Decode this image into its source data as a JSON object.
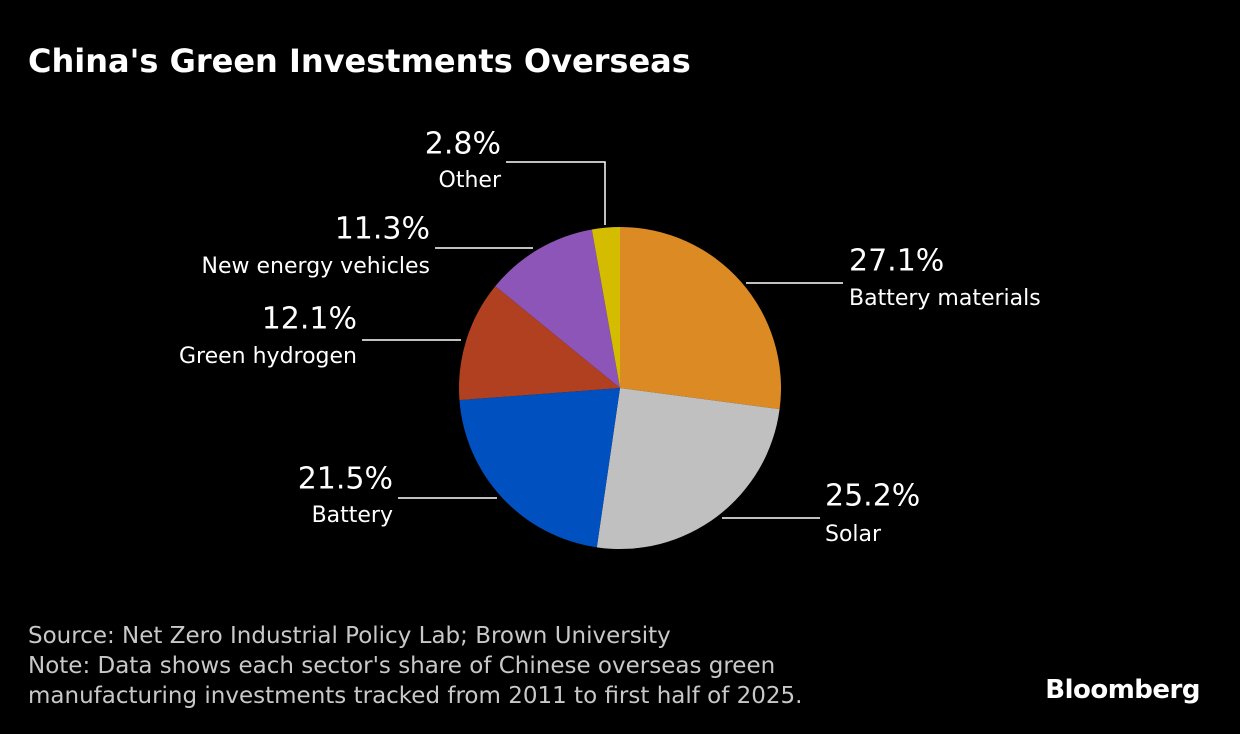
{
  "chart_data": {
    "type": "pie",
    "title": "China's Green Investments Overseas",
    "categories": [
      "Battery materials",
      "Solar",
      "Battery",
      "Green hydrogen",
      "New energy vehicles",
      "Other"
    ],
    "values": [
      27.1,
      25.2,
      21.5,
      12.1,
      11.3,
      2.8
    ],
    "value_labels": [
      "27.1%",
      "25.2%",
      "21.5%",
      "12.1%",
      "11.3%",
      "2.8%"
    ],
    "colors": [
      "#dc8a24",
      "#c0c0c0",
      "#0050c0",
      "#b04020",
      "#8e55b8",
      "#d4bc00"
    ],
    "source": "Source: Net Zero Industrial Policy Lab; Brown University",
    "note": [
      "Note: Data shows each sector's share of Chinese overseas green",
      "manufacturing investments tracked from 2011 to first half of 2025."
    ],
    "brand": "Bloomberg"
  }
}
